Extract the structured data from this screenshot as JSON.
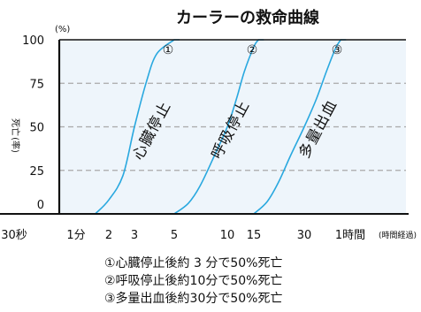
{
  "chart_data": {
    "type": "line",
    "title": "カーラーの救命曲線",
    "ylabel_unit": "(%)",
    "ylabel": "死亡(率)",
    "xlabel": "(時間経過)",
    "ylim": [
      0,
      100
    ],
    "y_ticks": [
      0,
      25,
      50,
      75,
      100
    ],
    "x_tick_labels": [
      "30秒",
      "1分",
      "2",
      "3",
      "5",
      "10",
      "15",
      "30",
      "1時間"
    ],
    "x_tick_minutes": [
      0.5,
      1,
      2,
      3,
      5,
      10,
      15,
      30,
      60
    ],
    "x_scale": "log",
    "grid": "dashed horizontal at 25, 50, 75",
    "series": [
      {
        "name": "心臓停止",
        "marker": "①",
        "points": [
          [
            1.5,
            0
          ],
          [
            2,
            8
          ],
          [
            2.5,
            22
          ],
          [
            3,
            50
          ],
          [
            3.5,
            76
          ],
          [
            4,
            92
          ],
          [
            5,
            100
          ]
        ]
      },
      {
        "name": "呼吸停止",
        "marker": "②",
        "points": [
          [
            5,
            0
          ],
          [
            6,
            6
          ],
          [
            7,
            16
          ],
          [
            8.5,
            34
          ],
          [
            10,
            50
          ],
          [
            11.5,
            66
          ],
          [
            13,
            82
          ],
          [
            15,
            96
          ],
          [
            16,
            100
          ]
        ]
      },
      {
        "name": "多量出血",
        "marker": "③",
        "points": [
          [
            15,
            0
          ],
          [
            18,
            7
          ],
          [
            21,
            18
          ],
          [
            25,
            34
          ],
          [
            30,
            50
          ],
          [
            36,
            66
          ],
          [
            42,
            82
          ],
          [
            48,
            95
          ],
          [
            52,
            100
          ]
        ]
      }
    ],
    "notes": [
      "①心臓停止後約 3 分で50%死亡",
      "②呼吸停止後約10分で50%死亡",
      "③多量出血後約30分で50%死亡"
    ]
  },
  "colors": {
    "line": "#29a8df",
    "plot_bg": "#eef5fb",
    "grid": "#a9a9a9",
    "axis": "#111111"
  }
}
